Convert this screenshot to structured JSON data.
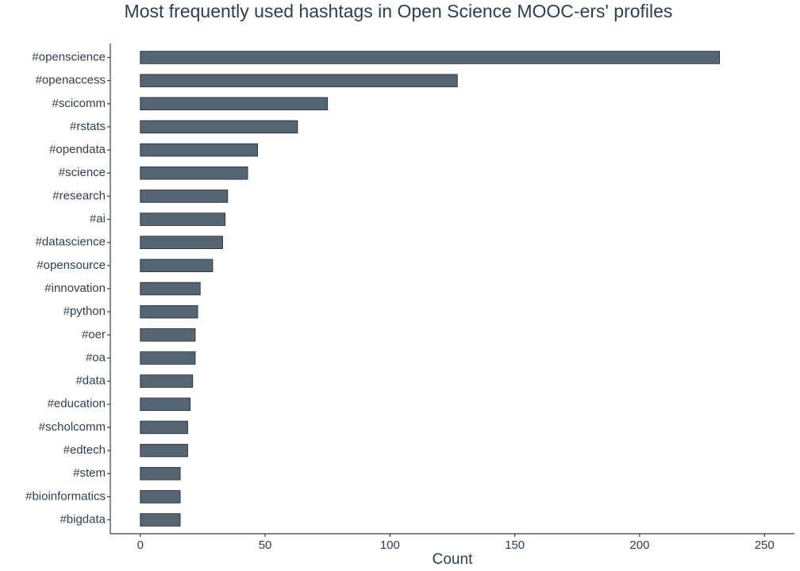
{
  "chart_data": {
    "type": "hbar",
    "title": "Most frequently used hashtags in Open Science MOOC-ers' profiles",
    "x_label": "Count",
    "categories": [
      "#openscience",
      "#openaccess",
      "#scicomm",
      "#rstats",
      "#opendata",
      "#science",
      "#research",
      "#ai",
      "#datascience",
      "#opensource",
      "#innovation",
      "#python",
      "#oer",
      "#oa",
      "#data",
      "#education",
      "#scholcomm",
      "#edtech",
      "#stem",
      "#bioinformatics",
      "#bigdata"
    ],
    "values": [
      232,
      127,
      75,
      63,
      47,
      43,
      35,
      34,
      33,
      29,
      24,
      23,
      22,
      22,
      21,
      20,
      19,
      19,
      16,
      16,
      16
    ],
    "color": "#566573",
    "xlim": [
      -12,
      262
    ],
    "xticks": [
      0,
      50,
      100,
      150,
      200,
      250
    ],
    "grid": false
  }
}
